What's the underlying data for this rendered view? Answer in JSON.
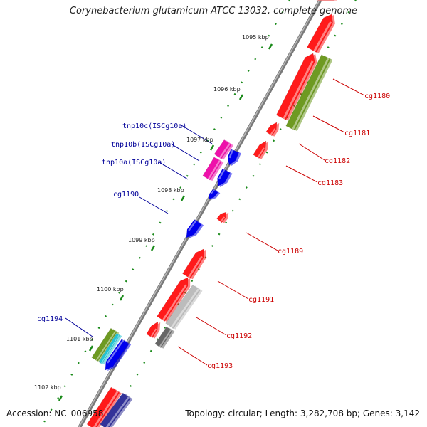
{
  "title": "Corynebacterium glutamicum ATCC 13032, complete genome",
  "footer": {
    "accession": "Accession: NC_006958",
    "summary": "Topology: circular; Length: 3,282,708 bp; Genes: 3,142"
  },
  "scale_labels": [
    "1095 kbp",
    "1096 kbp",
    "1097 kbp",
    "1098 kbp",
    "1099 kbp",
    "1100 kbp",
    "1101 kbp",
    "1102 kbp"
  ],
  "forward_gene_labels": [
    "cg1180",
    "cg1181",
    "cg1182",
    "cg1183",
    "cg1189",
    "cg1191",
    "cg1192",
    "cg1193"
  ],
  "reverse_gene_labels": [
    "tnp10c(ISCg10a)",
    "tnp10b(ISCg10a)",
    "tnp10a(ISCg10a)",
    "cg1190",
    "cg1194"
  ],
  "colors": {
    "forward_label": "#cc0000",
    "reverse_label": "#000099",
    "cds_red": "#ff1a1a",
    "cds_blue": "#0000ee",
    "cds_magenta": "#ee11aa",
    "cds_olive": "#6e9a22",
    "cds_cyan": "#22c4d4",
    "cds_grey": "#bcbcbc",
    "cds_dark_grey": "#666666",
    "cds_navy": "#333399",
    "backbone": "#7a7a7a",
    "tick": "#1a8a1a"
  }
}
